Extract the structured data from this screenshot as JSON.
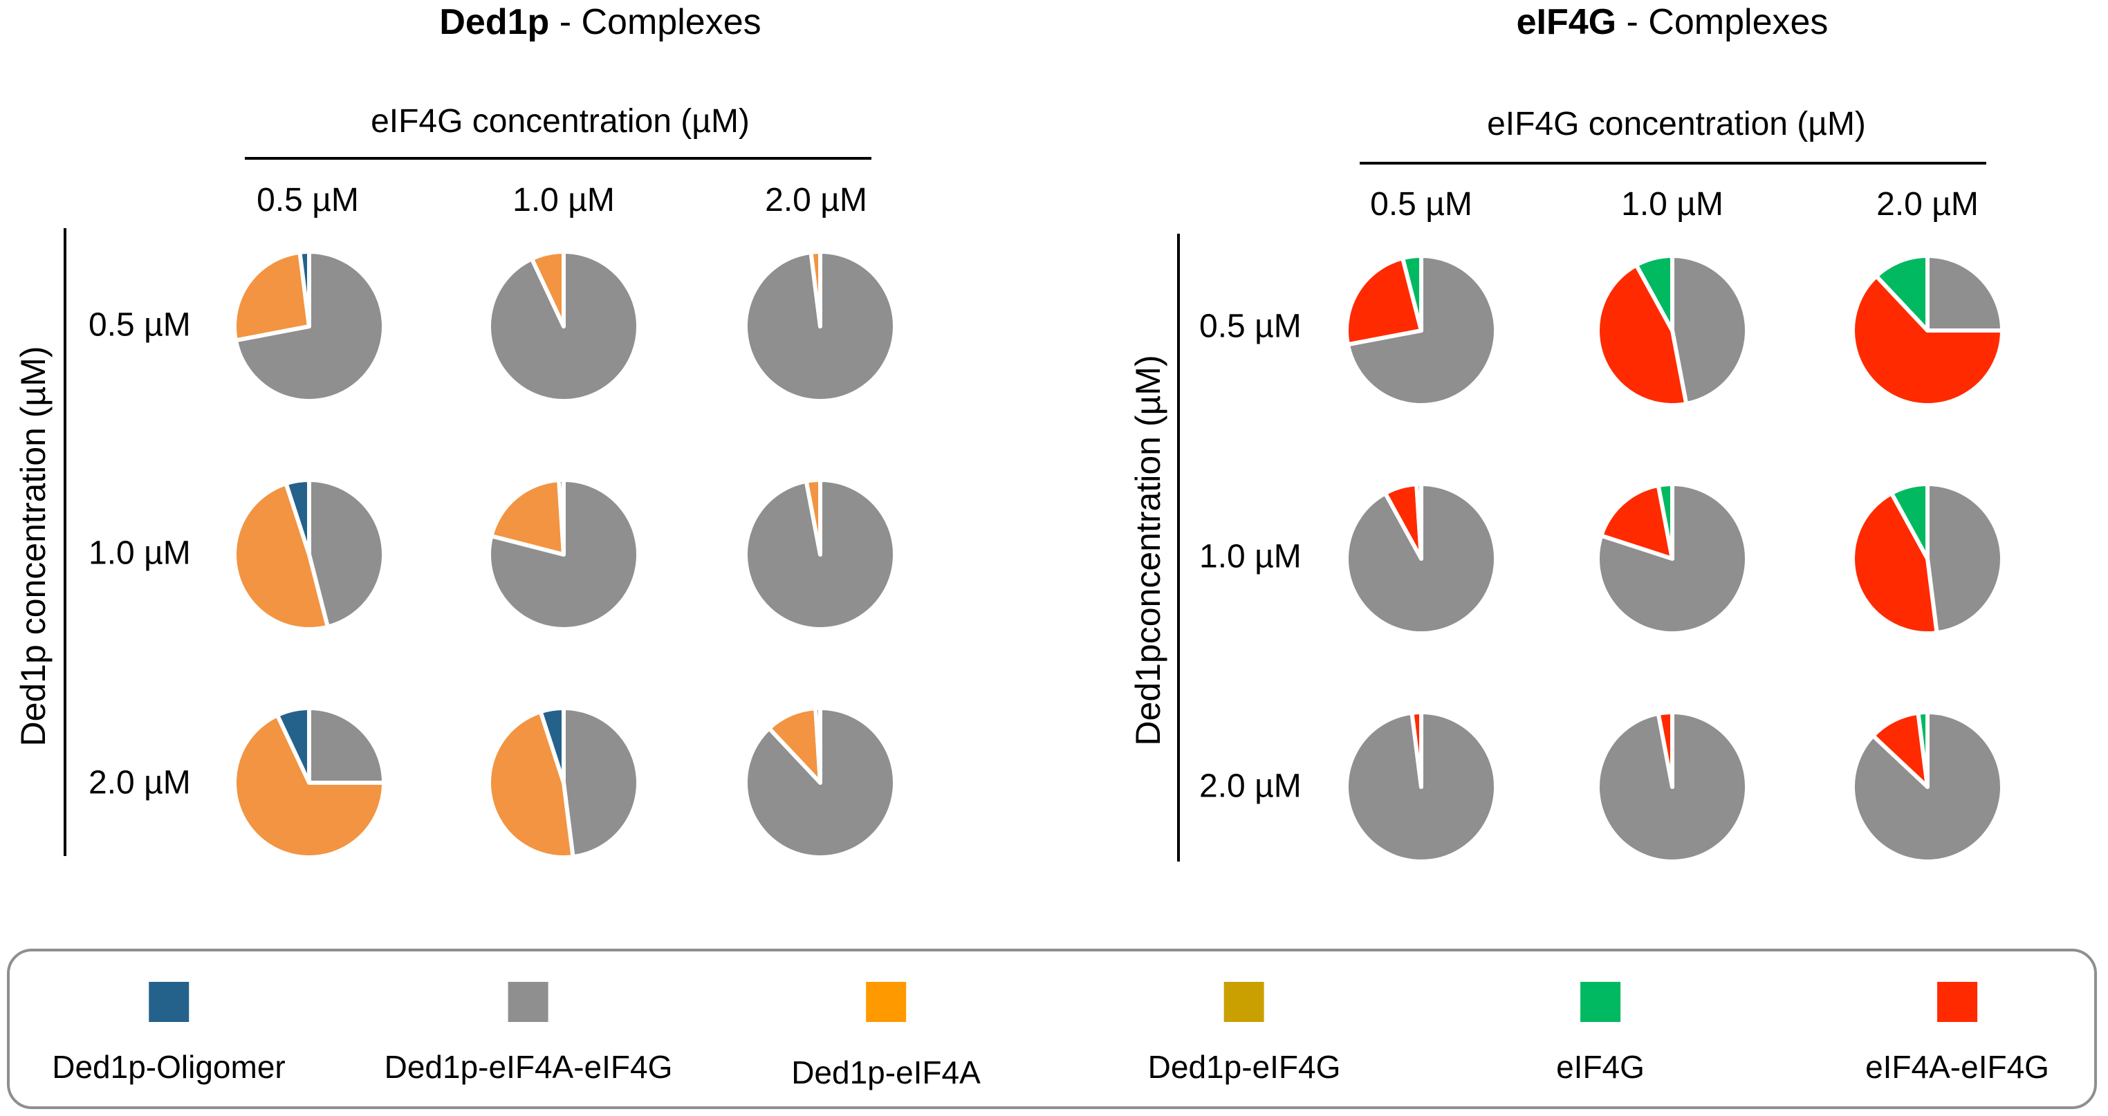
{
  "legend": [
    {
      "key": "oligomer",
      "label": "Ded1p-Oligomer",
      "color": "#24628b"
    },
    {
      "key": "ded1_4a_4g",
      "label": "Ded1p-eIF4A-eIF4G",
      "color": "#8f8f8f"
    },
    {
      "key": "ded1_4a",
      "label": "Ded1p-eIF4A",
      "color": "#ff9900"
    },
    {
      "key": "ded1_4g",
      "label": "Ded1p-eIF4G",
      "color": "#c9a000"
    },
    {
      "key": "eif4g",
      "label": "eIF4G",
      "color": "#00b960"
    },
    {
      "key": "eif4a_4g",
      "label": "eIF4A-eIF4G",
      "color": "#ff2a00"
    }
  ],
  "pie_colors": {
    "oligomer": "#24628b",
    "ded1_4a_4g": "#8f8f8f",
    "ded1_4a": "#f29442",
    "ded1_4g": "#c9a000",
    "eif4g": "#00b960",
    "eif4a_4g": "#ff2a00"
  },
  "chart_data": [
    {
      "type": "pie",
      "title_bold": "Ded1p",
      "title_rest": " - Complexes",
      "xlabel": "eIF4G concentration (µM)",
      "ylabel": "Ded1p concentration (µM)",
      "col_labels": [
        "0.5 µM",
        "1.0 µM",
        "2.0 µM"
      ],
      "row_labels": [
        "0.5 µM",
        "1.0 µM",
        "2.0 µM"
      ],
      "slice_order_clockwise_from_top": [
        "ded1_4a_4g",
        "ded1_4a",
        "oligomer"
      ],
      "pies": [
        [
          {
            "ded1_4a_4g": 0.72,
            "ded1_4a": 0.26,
            "oligomer": 0.02
          },
          {
            "ded1_4a_4g": 0.93,
            "ded1_4a": 0.07,
            "oligomer": 0.0
          },
          {
            "ded1_4a_4g": 0.98,
            "ded1_4a": 0.02,
            "oligomer": 0.0
          }
        ],
        [
          {
            "ded1_4a_4g": 0.46,
            "ded1_4a": 0.49,
            "oligomer": 0.05
          },
          {
            "ded1_4a_4g": 0.79,
            "ded1_4a": 0.2,
            "oligomer": 0.01
          },
          {
            "ded1_4a_4g": 0.97,
            "ded1_4a": 0.03,
            "oligomer": 0.0
          }
        ],
        [
          {
            "ded1_4a_4g": 0.25,
            "ded1_4a": 0.68,
            "oligomer": 0.07
          },
          {
            "ded1_4a_4g": 0.48,
            "ded1_4a": 0.47,
            "oligomer": 0.05
          },
          {
            "ded1_4a_4g": 0.88,
            "ded1_4a": 0.11,
            "oligomer": 0.01
          }
        ]
      ]
    },
    {
      "type": "pie",
      "title_bold": "eIF4G",
      "title_rest": " - Complexes",
      "xlabel": "eIF4G concentration (µM)",
      "ylabel": "Ded1pconcentration (µM)",
      "col_labels": [
        "0.5 µM",
        "1.0 µM",
        "2.0 µM"
      ],
      "row_labels": [
        "0.5 µM",
        "1.0 µM",
        "2.0 µM"
      ],
      "slice_order_clockwise_from_top": [
        "ded1_4a_4g",
        "eif4a_4g",
        "eif4g"
      ],
      "pies": [
        [
          {
            "ded1_4a_4g": 0.72,
            "eif4a_4g": 0.24,
            "eif4g": 0.04
          },
          {
            "ded1_4a_4g": 0.47,
            "eif4a_4g": 0.45,
            "eif4g": 0.08
          },
          {
            "ded1_4a_4g": 0.25,
            "eif4a_4g": 0.63,
            "eif4g": 0.12
          }
        ],
        [
          {
            "ded1_4a_4g": 0.92,
            "eif4a_4g": 0.07,
            "eif4g": 0.01
          },
          {
            "ded1_4a_4g": 0.8,
            "eif4a_4g": 0.17,
            "eif4g": 0.03
          },
          {
            "ded1_4a_4g": 0.48,
            "eif4a_4g": 0.44,
            "eif4g": 0.08
          }
        ],
        [
          {
            "ded1_4a_4g": 0.98,
            "eif4a_4g": 0.02,
            "eif4g": 0.0
          },
          {
            "ded1_4a_4g": 0.97,
            "eif4a_4g": 0.03,
            "eif4g": 0.0
          },
          {
            "ded1_4a_4g": 0.87,
            "eif4a_4g": 0.11,
            "eif4g": 0.02
          }
        ]
      ]
    }
  ]
}
